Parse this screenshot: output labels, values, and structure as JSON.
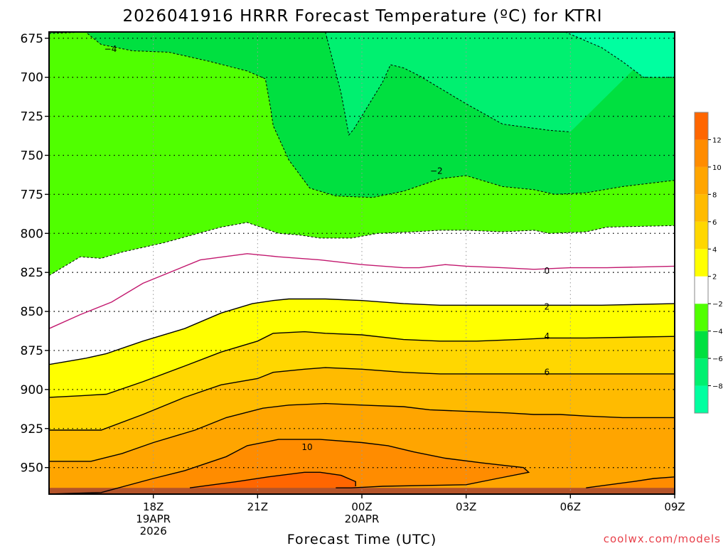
{
  "title": "2026041916 HRRR Forecast Temperature (ºC) for KTRI",
  "credit": "coolwx.com/models",
  "chart_data": {
    "type": "contour",
    "title": "2026041916 HRRR Forecast Temperature (ºC) for KTRI",
    "xlabel": "Forecast Time (UTC)",
    "ylabel": "",
    "x_range_hours": [
      -2.0,
      10.0
    ],
    "y_range_hpa": [
      671,
      967
    ],
    "y_reversed": true,
    "y_ticks": [
      675,
      700,
      725,
      750,
      775,
      800,
      825,
      850,
      875,
      900,
      925,
      950
    ],
    "x_ticks": [
      {
        "hour": 0,
        "lines": [
          "18Z",
          "19APR",
          "2026"
        ]
      },
      {
        "hour": 2,
        "lines": [
          "21Z"
        ]
      },
      {
        "hour": 4,
        "lines": [
          "00Z",
          "20APR"
        ]
      },
      {
        "hour": 6,
        "lines": [
          "03Z"
        ]
      },
      {
        "hour": 8,
        "lines": [
          "06Z"
        ]
      },
      {
        "hour": 10,
        "lines": [
          "09Z"
        ]
      }
    ],
    "colorbar": {
      "levels": [
        -10,
        -8,
        -6,
        -4,
        -2,
        2,
        4,
        6,
        8,
        10,
        12,
        14
      ],
      "colors": [
        "#00ffa0",
        "#00f070",
        "#00e040",
        "#50ff00",
        "#ffffff",
        "#ffff00",
        "#ffd700",
        "#ffbb00",
        "#ffa500",
        "#ff8c00",
        "#ff6600"
      ],
      "tick_labels": [
        "−8",
        "−6",
        "−4",
        "−2",
        "2",
        "4",
        "6",
        "8",
        "10",
        "12"
      ]
    },
    "contours": [
      {
        "value": -8,
        "style": "dashed",
        "points": [
          [
            3.3,
            671
          ],
          [
            3.6,
            710
          ],
          [
            3.75,
            737
          ],
          [
            3.85,
            733
          ],
          [
            4.4,
            703
          ],
          [
            4.55,
            692
          ],
          [
            4.8,
            694
          ],
          [
            5.1,
            699
          ],
          [
            5.5,
            707
          ],
          [
            6.0,
            717
          ],
          [
            6.7,
            730
          ],
          [
            7.6,
            734
          ],
          [
            8.0,
            735
          ]
        ]
      },
      {
        "value": -8,
        "style": "dashed",
        "points": [
          [
            7.9,
            671
          ],
          [
            8.6,
            681
          ],
          [
            9.0,
            690
          ],
          [
            9.4,
            700
          ],
          [
            10.0,
            700
          ]
        ]
      },
      {
        "value": -4,
        "style": "dashed",
        "label": "−4",
        "label_at": [
          -0.82,
          682
        ],
        "points": [
          [
            -2.0,
            672
          ],
          [
            -1.3,
            671
          ],
          [
            -1.0,
            679
          ],
          [
            -0.4,
            683
          ],
          [
            0.3,
            684
          ],
          [
            1.1,
            690
          ],
          [
            1.8,
            696
          ],
          [
            2.15,
            701
          ],
          [
            2.25,
            720
          ],
          [
            2.3,
            731
          ],
          [
            2.6,
            753
          ],
          [
            3.0,
            771
          ],
          [
            3.5,
            776
          ],
          [
            4.2,
            777
          ],
          [
            4.8,
            773
          ],
          [
            5.5,
            765
          ],
          [
            6.0,
            763
          ],
          [
            6.7,
            770
          ],
          [
            7.3,
            772
          ],
          [
            7.7,
            775
          ],
          [
            8.3,
            774
          ],
          [
            9.0,
            770
          ],
          [
            10.0,
            766
          ]
        ]
      },
      {
        "value": -2,
        "style": "dashed",
        "label": "−2",
        "label_at": [
          5.43,
          760
        ],
        "points": [
          [
            -2.0,
            827
          ],
          [
            -1.4,
            815
          ],
          [
            -1.0,
            816
          ],
          [
            -0.6,
            812
          ],
          [
            0.2,
            806
          ],
          [
            1.3,
            796
          ],
          [
            1.8,
            793
          ],
          [
            2.4,
            800
          ],
          [
            2.8,
            801
          ],
          [
            3.2,
            803
          ],
          [
            3.8,
            803
          ],
          [
            4.3,
            800
          ],
          [
            5.0,
            799
          ],
          [
            5.5,
            798
          ],
          [
            6.0,
            798
          ],
          [
            6.7,
            799
          ],
          [
            7.3,
            798
          ],
          [
            7.6,
            800
          ],
          [
            8.3,
            799
          ],
          [
            8.7,
            796
          ],
          [
            10.0,
            795
          ]
        ]
      },
      {
        "value": 0,
        "style": "solid",
        "color": "#c2186e",
        "label": "0",
        "label_at": [
          7.55,
          824
        ],
        "points": [
          [
            -2.0,
            861
          ],
          [
            -1.4,
            852
          ],
          [
            -0.8,
            844
          ],
          [
            -0.2,
            832
          ],
          [
            0.9,
            817
          ],
          [
            1.8,
            813
          ],
          [
            2.4,
            815
          ],
          [
            3.2,
            817
          ],
          [
            4.0,
            820
          ],
          [
            4.8,
            822
          ],
          [
            5.1,
            822
          ],
          [
            5.6,
            820
          ],
          [
            6.0,
            821
          ],
          [
            6.7,
            822
          ],
          [
            7.3,
            823
          ],
          [
            8.0,
            822
          ],
          [
            8.7,
            822
          ],
          [
            10.0,
            821
          ]
        ]
      },
      {
        "value": 2,
        "style": "solid",
        "color": "#000000",
        "label": "2",
        "label_at": [
          7.55,
          847
        ],
        "points": [
          [
            -2.0,
            884
          ],
          [
            -1.3,
            880
          ],
          [
            -0.9,
            877
          ],
          [
            -0.2,
            869
          ],
          [
            0.6,
            861
          ],
          [
            1.3,
            851
          ],
          [
            1.9,
            845
          ],
          [
            2.3,
            843
          ],
          [
            2.6,
            842
          ],
          [
            3.3,
            842
          ],
          [
            4.0,
            843
          ],
          [
            4.8,
            845
          ],
          [
            5.5,
            846
          ],
          [
            6.0,
            846
          ],
          [
            7.3,
            846
          ],
          [
            7.8,
            846
          ],
          [
            8.6,
            846
          ],
          [
            10.0,
            845
          ]
        ]
      },
      {
        "value": 4,
        "style": "solid",
        "color": "#000000",
        "label": "4",
        "label_at": [
          7.55,
          866
        ],
        "points": [
          [
            -2.0,
            905
          ],
          [
            -1.4,
            904
          ],
          [
            -0.9,
            903
          ],
          [
            -0.2,
            895
          ],
          [
            0.6,
            885
          ],
          [
            1.3,
            876
          ],
          [
            2.0,
            869
          ],
          [
            2.3,
            864
          ],
          [
            2.9,
            863
          ],
          [
            3.3,
            864
          ],
          [
            4.0,
            865
          ],
          [
            4.8,
            868
          ],
          [
            5.5,
            869
          ],
          [
            6.2,
            869
          ],
          [
            7.0,
            868
          ],
          [
            7.6,
            867
          ],
          [
            8.3,
            867
          ],
          [
            10.0,
            866
          ]
        ]
      },
      {
        "value": 6,
        "style": "solid",
        "color": "#000000",
        "label": "6",
        "label_at": [
          7.55,
          889
        ],
        "points": [
          [
            -2.0,
            926
          ],
          [
            -1.4,
            926
          ],
          [
            -1.0,
            926
          ],
          [
            -0.2,
            916
          ],
          [
            0.6,
            905
          ],
          [
            1.3,
            897
          ],
          [
            2.0,
            893
          ],
          [
            2.3,
            889
          ],
          [
            2.9,
            887
          ],
          [
            3.3,
            886
          ],
          [
            4.0,
            887
          ],
          [
            4.8,
            889
          ],
          [
            5.5,
            890
          ],
          [
            6.4,
            890
          ],
          [
            7.3,
            890
          ],
          [
            8.2,
            890
          ],
          [
            8.6,
            890
          ],
          [
            10.0,
            890
          ]
        ]
      },
      {
        "value": 8,
        "style": "solid",
        "color": "#000000",
        "points": [
          [
            -2.0,
            946
          ],
          [
            -1.2,
            946
          ],
          [
            -0.6,
            941
          ],
          [
            0.0,
            934
          ],
          [
            0.8,
            926
          ],
          [
            1.4,
            918
          ],
          [
            2.1,
            912
          ],
          [
            2.6,
            910
          ],
          [
            3.3,
            909
          ],
          [
            4.0,
            910
          ],
          [
            4.8,
            911
          ],
          [
            5.3,
            913
          ],
          [
            6.0,
            914
          ],
          [
            6.8,
            915
          ],
          [
            7.3,
            916
          ],
          [
            7.8,
            916
          ],
          [
            8.3,
            917
          ],
          [
            9.0,
            918
          ],
          [
            10.0,
            918
          ]
        ]
      },
      {
        "value": 10,
        "style": "solid",
        "color": "#000000",
        "label": "10",
        "label_at": [
          2.95,
          937
        ],
        "points": [
          [
            -2.0,
            967
          ],
          [
            -1.0,
            966
          ],
          [
            0.0,
            957
          ],
          [
            0.6,
            952
          ],
          [
            1.4,
            943
          ],
          [
            1.8,
            936
          ],
          [
            2.4,
            932
          ],
          [
            3.2,
            932
          ],
          [
            4.0,
            934
          ],
          [
            4.5,
            936
          ],
          [
            5.0,
            940
          ],
          [
            5.6,
            944
          ],
          [
            6.3,
            947
          ],
          [
            7.1,
            950
          ],
          [
            7.2,
            953
          ],
          [
            6.6,
            957
          ],
          [
            6.0,
            961
          ],
          [
            4.4,
            962
          ],
          [
            3.8,
            963
          ],
          [
            3.5,
            963
          ]
        ]
      },
      {
        "value": 12,
        "style": "solid",
        "color": "#000000",
        "points": [
          [
            0.7,
            963
          ],
          [
            1.6,
            959
          ],
          [
            2.2,
            956
          ],
          [
            2.9,
            953
          ],
          [
            3.2,
            953
          ],
          [
            3.6,
            955
          ],
          [
            3.88,
            959
          ],
          [
            3.88,
            962
          ]
        ]
      },
      {
        "value": 12,
        "style": "solid",
        "color": "#000000",
        "points": [
          [
            8.3,
            963
          ],
          [
            9.2,
            959
          ],
          [
            9.6,
            957
          ],
          [
            10.0,
            956
          ]
        ]
      }
    ]
  }
}
